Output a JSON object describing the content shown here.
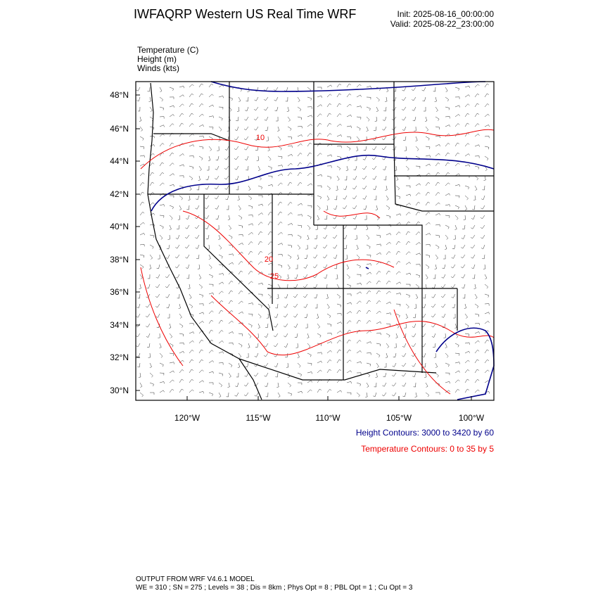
{
  "header": {
    "title": "IWFAQRP Western US Real Time WRF",
    "init": "Init: 2025-08-16_00:00:00",
    "valid": "Valid: 2025-08-22_23:00:00"
  },
  "fields": [
    "Temperature   (C)",
    "Height   (m)",
    "Winds   (kts)"
  ],
  "map": {
    "lat_labels": [
      "48°N",
      "46°N",
      "44°N",
      "42°N",
      "40°N",
      "38°N",
      "36°N",
      "34°N",
      "32°N",
      "30°N"
    ],
    "lon_labels": [
      "120°W",
      "115°W",
      "110°W",
      "105°W",
      "100°W"
    ],
    "contour_labels": [
      "10",
      "20",
      "25"
    ]
  },
  "legend": {
    "height": "Height Contours: 3000 to 3420 by 60",
    "temperature": "Temperature Contours: 0 to 35 by 5"
  },
  "footer": [
    "OUTPUT FROM WRF V4.6.1 MODEL",
    "WE = 310 ; SN = 275 ; Levels = 38 ; Dis = 8km ; Phys Opt = 8 ; PBL Opt = 1 ; Cu Opt = 3"
  ]
}
